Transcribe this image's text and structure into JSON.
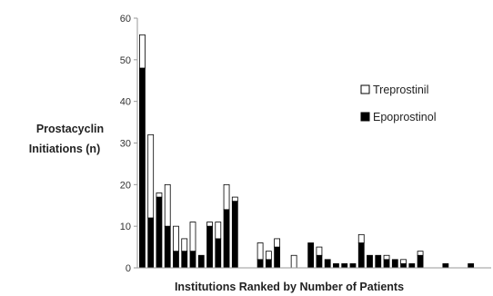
{
  "chart_data": {
    "type": "bar",
    "stacked": true,
    "xlabel": "Institutions Ranked by Number of Patients",
    "ylabel_lines": [
      "Prostacyclin",
      "Initiations (n)"
    ],
    "ylim": [
      0,
      60
    ],
    "yticks": [
      0,
      10,
      20,
      30,
      40,
      50,
      60
    ],
    "grid": false,
    "legend_position": "right",
    "series": [
      {
        "name": "Epoprostinol",
        "color": "#000000",
        "values": [
          48,
          12,
          17,
          10,
          4,
          4,
          4,
          3,
          10,
          7,
          14,
          16,
          0,
          0,
          2,
          2,
          5,
          0,
          0,
          0,
          6,
          3,
          2,
          1,
          1,
          1,
          6,
          3,
          3,
          2,
          2,
          1,
          1,
          3,
          0,
          0,
          1,
          0,
          0,
          1,
          0,
          0
        ]
      },
      {
        "name": "Treprostinil",
        "color": "#ffffff",
        "values": [
          8,
          20,
          1,
          10,
          6,
          3,
          7,
          0,
          1,
          4,
          6,
          1,
          0,
          0,
          4,
          2,
          2,
          0,
          3,
          0,
          0,
          2,
          0,
          0,
          0,
          0,
          2,
          0,
          0,
          1,
          0,
          1,
          0,
          1,
          0,
          0,
          0,
          0,
          0,
          0,
          0,
          0
        ]
      }
    ],
    "legend": [
      {
        "label": "Treprostinil",
        "color": "#ffffff"
      },
      {
        "label": "Epoprostinol",
        "color": "#000000"
      }
    ]
  }
}
